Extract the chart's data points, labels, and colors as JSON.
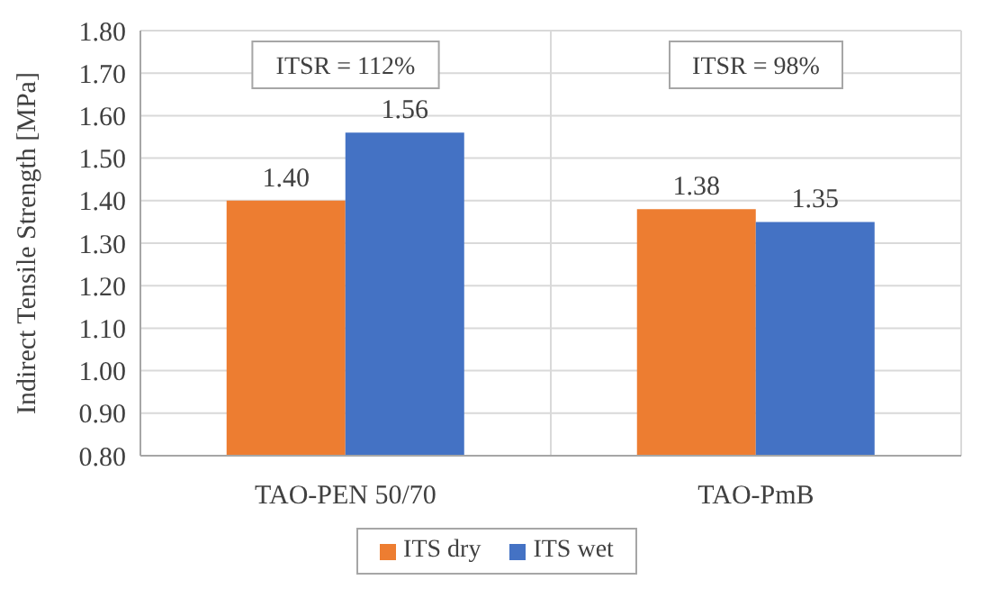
{
  "chart_data": {
    "type": "bar",
    "ylabel": "Indirect Tensile Strength [MPa]",
    "categories": [
      "TAO-PEN 50/70",
      "TAO-PmB"
    ],
    "series": [
      {
        "name": "ITS dry",
        "color": "#ed7d31",
        "values": [
          1.4,
          1.38
        ],
        "value_labels": [
          "1.40",
          "1.38"
        ]
      },
      {
        "name": "ITS wet",
        "color": "#4472c4",
        "values": [
          1.56,
          1.35
        ],
        "value_labels": [
          "1.56",
          "1.35"
        ]
      }
    ],
    "ylim": [
      0.8,
      1.8
    ],
    "yticks": [
      {
        "value": 0.8,
        "label": "0.80"
      },
      {
        "value": 0.9,
        "label": "0.90"
      },
      {
        "value": 1.0,
        "label": "1.00"
      },
      {
        "value": 1.1,
        "label": "1.10"
      },
      {
        "value": 1.2,
        "label": "1.20"
      },
      {
        "value": 1.3,
        "label": "1.30"
      },
      {
        "value": 1.4,
        "label": "1.40"
      },
      {
        "value": 1.5,
        "label": "1.50"
      },
      {
        "value": 1.6,
        "label": "1.60"
      },
      {
        "value": 1.7,
        "label": "1.70"
      },
      {
        "value": 1.8,
        "label": "1.80"
      }
    ],
    "annotations": [
      "ITSR = 112%",
      "ITSR = 98%"
    ],
    "grid": true,
    "legend": "bottom"
  }
}
